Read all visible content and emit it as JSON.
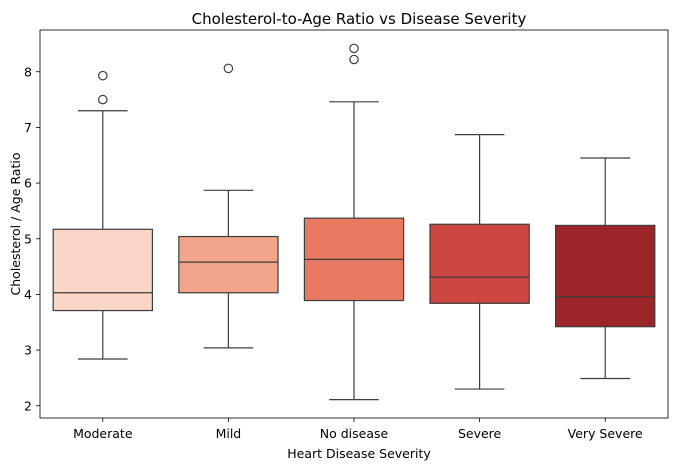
{
  "chart_data": {
    "type": "box",
    "title": "Cholesterol-to-Age Ratio vs Disease Severity",
    "xlabel": "Heart Disease Severity",
    "ylabel": "Cholesterol / Age Ratio",
    "ylim": [
      1.78,
      8.75
    ],
    "yticks": [
      2,
      3,
      4,
      5,
      6,
      7,
      8
    ],
    "ytick_labels": [
      "2",
      "3",
      "4",
      "5",
      "6",
      "7",
      "8"
    ],
    "grid": false,
    "categories": [
      "Moderate",
      "Mild",
      "No disease",
      "Severe",
      "Very Severe"
    ],
    "boxes": [
      {
        "category": "Moderate",
        "whisker_low": 2.84,
        "q1": 3.71,
        "median": 4.03,
        "q3": 5.17,
        "whisker_high": 7.3,
        "outliers": [
          7.5,
          7.93
        ],
        "color": "#fbd5c6"
      },
      {
        "category": "Mild",
        "whisker_low": 3.04,
        "q1": 4.03,
        "median": 4.58,
        "q3": 5.04,
        "whisker_high": 5.87,
        "outliers": [
          8.06
        ],
        "color": "#f1a68b"
      },
      {
        "category": "No disease",
        "whisker_low": 2.11,
        "q1": 3.89,
        "median": 4.63,
        "q3": 5.37,
        "whisker_high": 7.46,
        "outliers": [
          8.22,
          8.42
        ],
        "color": "#e87a61"
      },
      {
        "category": "Severe",
        "whisker_low": 2.3,
        "q1": 3.84,
        "median": 4.31,
        "q3": 5.26,
        "whisker_high": 6.87,
        "outliers": [],
        "color": "#cd4641"
      },
      {
        "category": "Very Severe",
        "whisker_low": 2.49,
        "q1": 3.42,
        "median": 3.96,
        "q3": 5.24,
        "whisker_high": 6.45,
        "outliers": [],
        "color": "#9c252a"
      }
    ]
  }
}
